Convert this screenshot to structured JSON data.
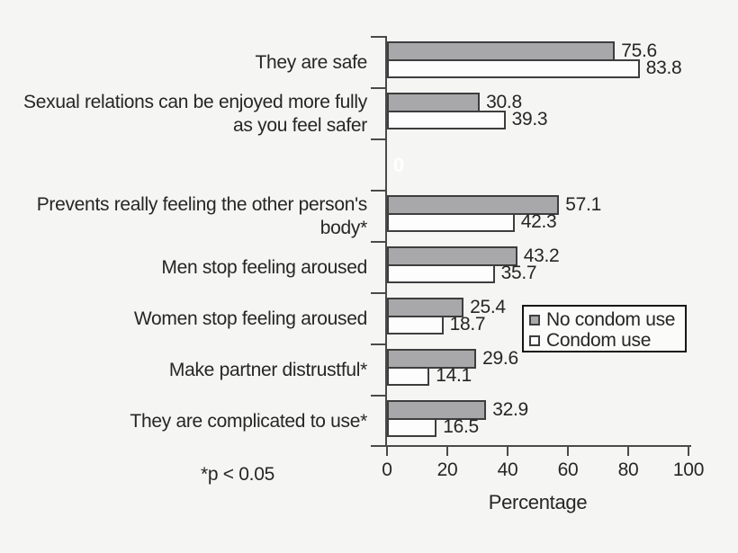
{
  "chart_data": {
    "type": "bar",
    "orientation": "horizontal",
    "categories": [
      "They are safe",
      "Sexual relations can be enjoyed more fully as you feel safer",
      "",
      "Prevents really feeling the other person's body*",
      "Men stop feeling aroused",
      "Women stop feeling aroused",
      "Make partner distrustful*",
      "They are complicated to use*"
    ],
    "series": [
      {
        "name": "No condom use",
        "color": "#a8a8aa",
        "values": [
          75.6,
          30.8,
          null,
          57.1,
          43.2,
          25.4,
          29.6,
          32.9
        ]
      },
      {
        "name": "Condom use",
        "color": "#fdfdfd",
        "values": [
          83.8,
          39.3,
          null,
          42.3,
          35.7,
          18.7,
          14.1,
          16.5
        ]
      }
    ],
    "spacer_row_label": "0",
    "xlabel": "Percentage",
    "xticks": [
      0,
      20,
      40,
      60,
      80,
      100
    ],
    "xlim": [
      0,
      100
    ],
    "footnote": "*p < 0.05",
    "legend": {
      "position": "middle-right",
      "entries": [
        "No condom use",
        "Condom use"
      ]
    },
    "grid": false,
    "colors": {
      "background": "#f5f5f4",
      "bar_border": "#3e3e3e",
      "axis": "#4a4a4a",
      "text": "#262626",
      "spacer_label_color": "#ffffff"
    }
  }
}
